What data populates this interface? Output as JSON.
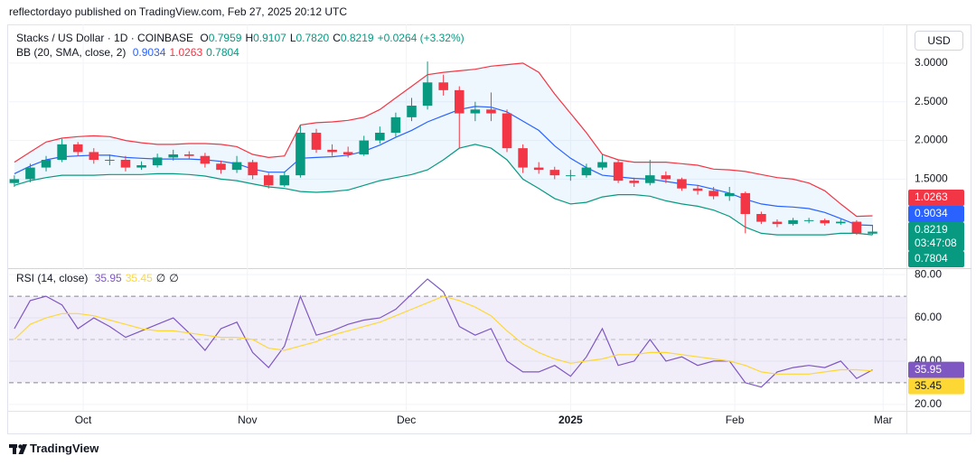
{
  "header": {
    "byline": "reflectordayo published on TradingView.com, Feb 27, 2025 20:12 UTC"
  },
  "footer": {
    "brand": "TradingView"
  },
  "chart_data": [
    {
      "type": "candlestick",
      "title": "Stacks / US Dollar · 1D · COINBASE",
      "currency": "USD",
      "ohlc_labels": [
        "O",
        "H",
        "L",
        "C"
      ],
      "ohlc_value_labels": [
        "0.7959",
        "0.9107",
        "0.7820",
        "0.8219"
      ],
      "change": "+0.0264 (+3.32%)",
      "countdown": "03:47:08",
      "up_color": "#089981",
      "down_color": "#f23645",
      "xlim": [
        -14,
        155.4
      ],
      "ylim": [
        0.35,
        3.5
      ],
      "yticks": [
        {
          "value": 1.5,
          "label": "1.5000"
        },
        {
          "value": 2,
          "label": "2.0000"
        },
        {
          "value": 2.5,
          "label": "2.5000"
        },
        {
          "value": 3,
          "label": "3.0000"
        }
      ],
      "grid": true,
      "x": [
        -13,
        -10,
        -7,
        -4,
        -1,
        2,
        5,
        8,
        11,
        14,
        17,
        20,
        23,
        26,
        29,
        32,
        35,
        38,
        41,
        44,
        47,
        50,
        53,
        56,
        59,
        62,
        65,
        68,
        71,
        74,
        77,
        80,
        83,
        86,
        89,
        92,
        95,
        98,
        101,
        104,
        107,
        110,
        113,
        116,
        119,
        122,
        125,
        128,
        131,
        134,
        137,
        140,
        143,
        146,
        149
      ],
      "open": [
        1.45,
        1.5,
        1.65,
        1.75,
        1.95,
        1.85,
        1.75,
        1.75,
        1.65,
        1.68,
        1.78,
        1.82,
        1.8,
        1.7,
        1.62,
        1.72,
        1.55,
        1.42,
        1.55,
        2.1,
        1.88,
        1.85,
        1.82,
        2.0,
        2.1,
        2.3,
        2.45,
        2.75,
        2.65,
        2.35,
        2.4,
        2.35,
        1.9,
        1.65,
        1.62,
        1.55,
        1.55,
        1.65,
        1.72,
        1.48,
        1.45,
        1.55,
        1.5,
        1.38,
        1.35,
        1.28,
        1.32,
        1.05,
        0.95,
        0.92,
        0.97,
        0.97,
        0.93,
        0.95,
        0.7959
      ],
      "high": [
        1.55,
        1.7,
        1.8,
        2.02,
        1.98,
        1.9,
        1.82,
        1.8,
        1.73,
        1.83,
        1.88,
        1.86,
        1.84,
        1.74,
        1.8,
        1.75,
        1.58,
        1.6,
        2.2,
        2.15,
        1.95,
        1.92,
        2.06,
        2.18,
        2.36,
        2.55,
        3.02,
        2.85,
        2.7,
        2.5,
        2.62,
        2.4,
        1.95,
        1.72,
        1.66,
        1.62,
        1.7,
        1.82,
        1.75,
        1.52,
        1.75,
        1.6,
        1.52,
        1.42,
        1.4,
        1.4,
        1.34,
        1.08,
        0.98,
        1.0,
        1.0,
        0.99,
        0.98,
        0.97,
        0.9107
      ],
      "low": [
        1.4,
        1.46,
        1.6,
        1.72,
        1.8,
        1.7,
        1.68,
        1.6,
        1.62,
        1.65,
        1.74,
        1.76,
        1.65,
        1.57,
        1.58,
        1.5,
        1.38,
        1.4,
        1.52,
        1.84,
        1.8,
        1.78,
        1.8,
        1.96,
        2.05,
        2.25,
        2.4,
        2.58,
        1.9,
        2.25,
        2.25,
        1.85,
        1.58,
        1.57,
        1.5,
        1.48,
        1.52,
        1.62,
        1.45,
        1.4,
        1.42,
        1.45,
        1.35,
        1.3,
        1.24,
        1.22,
        0.8,
        0.92,
        0.88,
        0.9,
        0.93,
        0.9,
        0.91,
        0.78,
        0.782
      ],
      "close": [
        1.5,
        1.65,
        1.75,
        1.95,
        1.85,
        1.75,
        1.75,
        1.65,
        1.68,
        1.78,
        1.82,
        1.8,
        1.7,
        1.62,
        1.72,
        1.55,
        1.42,
        1.55,
        2.1,
        1.88,
        1.85,
        1.82,
        2.0,
        2.1,
        2.3,
        2.45,
        2.75,
        2.65,
        2.35,
        2.4,
        2.35,
        1.9,
        1.65,
        1.62,
        1.55,
        1.55,
        1.65,
        1.72,
        1.48,
        1.45,
        1.55,
        1.5,
        1.38,
        1.35,
        1.28,
        1.32,
        1.05,
        0.95,
        0.92,
        0.97,
        0.97,
        0.93,
        0.95,
        0.8,
        0.8219
      ],
      "indicator": "BB (20, SMA, close, 2)",
      "fill_color": "rgba(33,150,243,0.08)",
      "series": [
        {
          "color": "#2962ff",
          "values": [
            1.57,
            1.67,
            1.75,
            1.79,
            1.8,
            1.81,
            1.81,
            1.78,
            1.77,
            1.76,
            1.76,
            1.76,
            1.75,
            1.73,
            1.7,
            1.63,
            1.59,
            1.59,
            1.77,
            1.78,
            1.79,
            1.81,
            1.86,
            1.94,
            2.04,
            2.13,
            2.24,
            2.32,
            2.4,
            2.44,
            2.43,
            2.37,
            2.25,
            2.13,
            1.93,
            1.77,
            1.65,
            1.55,
            1.53,
            1.51,
            1.5,
            1.47,
            1.44,
            1.42,
            1.37,
            1.32,
            1.24,
            1.18,
            1.15,
            1.14,
            1.12,
            1.07,
            0.99,
            0.91,
            0.9034
          ]
        },
        {
          "color": "#f23645",
          "values": [
            1.72,
            1.85,
            1.98,
            2.03,
            2.05,
            2.06,
            2.05,
            2.0,
            1.97,
            1.95,
            1.95,
            1.96,
            1.96,
            1.95,
            1.92,
            1.82,
            1.78,
            1.8,
            2.2,
            2.23,
            2.24,
            2.26,
            2.3,
            2.4,
            2.55,
            2.7,
            2.85,
            2.88,
            2.9,
            2.92,
            2.96,
            2.98,
            3.0,
            2.88,
            2.6,
            2.35,
            2.1,
            1.82,
            1.75,
            1.72,
            1.72,
            1.72,
            1.7,
            1.68,
            1.63,
            1.62,
            1.6,
            1.56,
            1.52,
            1.5,
            1.45,
            1.35,
            1.18,
            1.02,
            1.0263
          ]
        },
        {
          "color": "#089981",
          "values": [
            1.42,
            1.48,
            1.52,
            1.55,
            1.55,
            1.55,
            1.56,
            1.56,
            1.56,
            1.57,
            1.57,
            1.56,
            1.54,
            1.5,
            1.48,
            1.44,
            1.4,
            1.38,
            1.34,
            1.33,
            1.34,
            1.36,
            1.42,
            1.48,
            1.52,
            1.56,
            1.62,
            1.75,
            1.9,
            1.95,
            1.9,
            1.75,
            1.5,
            1.38,
            1.25,
            1.18,
            1.2,
            1.27,
            1.3,
            1.3,
            1.28,
            1.22,
            1.18,
            1.15,
            1.1,
            1.02,
            0.88,
            0.8,
            0.78,
            0.78,
            0.78,
            0.78,
            0.8,
            0.8,
            0.7804
          ]
        }
      ]
    },
    {
      "type": "line",
      "indicator": "RSI (14, close)",
      "extra_labels": [
        "∅",
        "∅"
      ],
      "xlim": [
        -14,
        155.4
      ],
      "xticks": [
        {
          "value": 0,
          "label": "Oct"
        },
        {
          "value": 31,
          "label": "Nov"
        },
        {
          "value": 61,
          "label": "Dec"
        },
        {
          "value": 92,
          "label": "2025",
          "bold": true
        },
        {
          "value": 123,
          "label": "Feb"
        },
        {
          "value": 151,
          "label": "Mar"
        }
      ],
      "ylim": [
        17,
        83
      ],
      "yticks": [
        {
          "value": 20,
          "label": "20.00"
        },
        {
          "value": 40,
          "label": "40.00"
        },
        {
          "value": 60,
          "label": "60.00"
        },
        {
          "value": 80,
          "label": "80.00"
        }
      ],
      "grid": true,
      "bands": [
        70,
        50,
        30
      ],
      "band_color": "rgba(126,87,194,0.1)",
      "x": [
        -13,
        -10,
        -7,
        -4,
        -1,
        2,
        5,
        8,
        11,
        14,
        17,
        20,
        23,
        26,
        29,
        32,
        35,
        38,
        41,
        44,
        47,
        50,
        53,
        56,
        59,
        62,
        65,
        68,
        71,
        74,
        77,
        80,
        83,
        86,
        89,
        92,
        95,
        98,
        101,
        104,
        107,
        110,
        113,
        116,
        119,
        122,
        125,
        128,
        131,
        134,
        137,
        140,
        143,
        146,
        149
      ],
      "series": [
        {
          "color": "#7e57c2",
          "values": [
            55,
            68,
            70,
            66,
            55,
            60,
            56,
            51,
            54,
            57,
            60,
            53,
            45,
            55,
            58,
            44,
            37,
            47,
            70,
            52,
            54,
            57,
            59,
            60,
            64,
            71,
            78,
            72,
            56,
            52,
            55,
            40,
            35,
            35,
            38,
            33,
            42,
            55,
            38,
            40,
            50,
            40,
            42,
            38,
            40,
            40,
            30,
            28,
            35,
            37,
            38,
            37,
            40,
            32,
            35.95
          ]
        },
        {
          "color": "#fdd835",
          "values": [
            50,
            57,
            60,
            62,
            62,
            61,
            59,
            57,
            55,
            54,
            54,
            53,
            52,
            51,
            51,
            50,
            46,
            45,
            47,
            49,
            52,
            54,
            56,
            58,
            61,
            64,
            67,
            70,
            68,
            65,
            61,
            54,
            48,
            44,
            41,
            39,
            40,
            41,
            43,
            43,
            44,
            44,
            43,
            42,
            41,
            40,
            38,
            35,
            34,
            34,
            34,
            35,
            36,
            36,
            35.45
          ]
        }
      ]
    }
  ]
}
